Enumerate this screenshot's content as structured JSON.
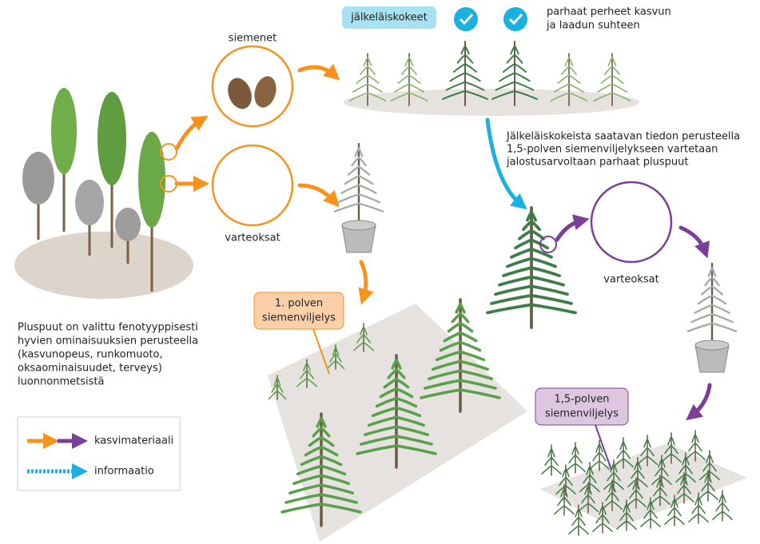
{
  "test_label": "jälkeläiskokeet",
  "best_families": [
    "parhaat perheet kasvun",
    "ja laadun suhteen"
  ],
  "seeds_label": "siemenet",
  "cuttings_label": "varteoksat",
  "cuttings_label_2": "varteoksat",
  "info_text": [
    "Jälkeläiskokeista saatavan tiedon perusteella",
    "1,5-polven siemenviljelykseen vartetaan",
    "jalostusarvoltaan parhaat pluspuut"
  ],
  "orchard_1": [
    "1. polven",
    "siemenviljelys"
  ],
  "orchard_15": [
    "1,5-polven",
    "siemenviljelys"
  ],
  "plus_trees_text": [
    "Pluspuut on valittu fenotyyppisesti",
    "hyvien ominaisuuksien perusteella",
    "(kasvunopeus, runkomuoto,",
    "oksaominaisuudet, terveys)",
    "luonnonmetsistä"
  ],
  "legend": {
    "material": "kasvimateriaali",
    "information": "informaatio"
  }
}
